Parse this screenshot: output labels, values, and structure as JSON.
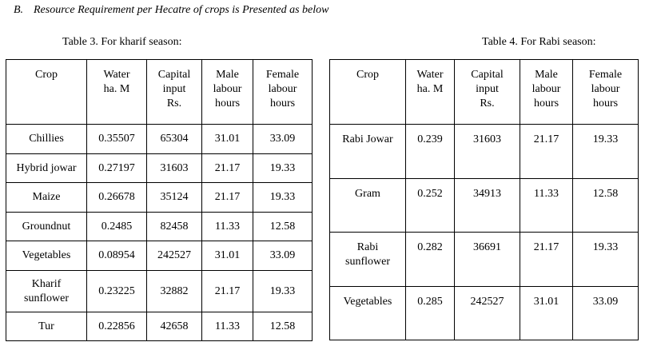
{
  "heading": {
    "letter": "B.",
    "text": "Resource Requirement per Hecatre of crops  is Presented as below"
  },
  "kharif": {
    "caption": "Table 3. For kharif season:",
    "headers": [
      [
        "Crop"
      ],
      [
        "Water",
        "ha. M"
      ],
      [
        "Capital",
        "input",
        "Rs."
      ],
      [
        "Male",
        "labour",
        "hours"
      ],
      [
        "Female",
        "labour",
        "hours"
      ]
    ],
    "rows": [
      {
        "crop": [
          "Chillies"
        ],
        "water": "0.35507",
        "capital": "65304",
        "male": "31.01",
        "female": "33.09"
      },
      {
        "crop": [
          "Hybrid jowar"
        ],
        "water": "0.27197",
        "capital": "31603",
        "male": "21.17",
        "female": "19.33"
      },
      {
        "crop": [
          "Maize"
        ],
        "water": "0.26678",
        "capital": "35124",
        "male": "21.17",
        "female": "19.33"
      },
      {
        "crop": [
          "Groundnut"
        ],
        "water": "0.2485",
        "capital": "82458",
        "male": "11.33",
        "female": "12.58"
      },
      {
        "crop": [
          "Vegetables"
        ],
        "water": "0.08954",
        "capital": "242527",
        "male": "31.01",
        "female": "33.09"
      },
      {
        "crop": [
          "Kharif",
          "sunflower"
        ],
        "water": "0.23225",
        "capital": "32882",
        "male": "21.17",
        "female": "19.33"
      },
      {
        "crop": [
          "Tur"
        ],
        "water": "0.22856",
        "capital": "42658",
        "male": "11.33",
        "female": "12.58"
      }
    ]
  },
  "rabi": {
    "caption": "Table 4. For Rabi season:",
    "headers": [
      [
        "Crop"
      ],
      [
        "Water",
        "ha. M"
      ],
      [
        "Capital",
        "input",
        "Rs."
      ],
      [
        "Male",
        "labour",
        "hours"
      ],
      [
        "Female",
        "labour",
        "hours"
      ]
    ],
    "rows": [
      {
        "crop": [
          "Rabi Jowar"
        ],
        "water": "0.239",
        "capital": "31603",
        "male": "21.17",
        "female": "19.33"
      },
      {
        "crop": [
          "Gram"
        ],
        "water": "0.252",
        "capital": "34913",
        "male": "11.33",
        "female": "12.58"
      },
      {
        "crop": [
          "Rabi",
          "sunflower"
        ],
        "water": "0.282",
        "capital": "36691",
        "male": "21.17",
        "female": "19.33"
      },
      {
        "crop": [
          "Vegetables"
        ],
        "water": "0.285",
        "capital": "242527",
        "male": "31.01",
        "female": "33.09"
      }
    ]
  }
}
